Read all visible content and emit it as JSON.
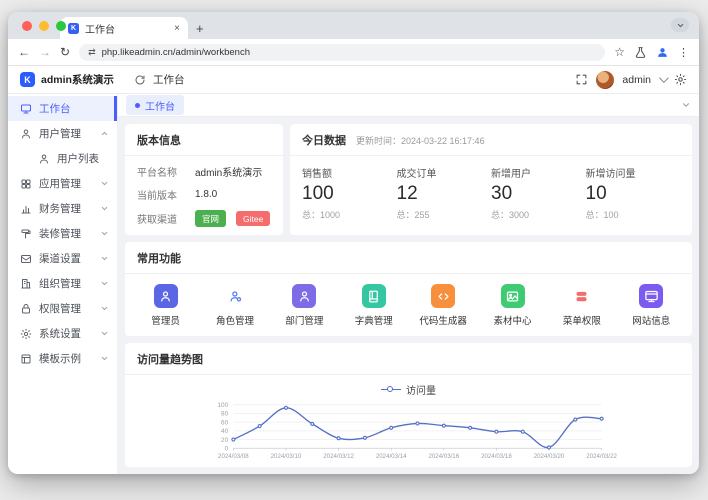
{
  "colors": {
    "accent": "#4a5dff",
    "chart_line": "#5470c6",
    "btn_green": "#4cb050",
    "btn_red": "#f56c6c"
  },
  "browser": {
    "tab_title": "工作台",
    "url": "php.likeadmin.cn/admin/workbench"
  },
  "app_header": {
    "app_name": "admin系统演示",
    "breadcrumb": "工作台",
    "user_name": "admin"
  },
  "tab_bar": {
    "active_tab": "工作台"
  },
  "sidebar": {
    "items": [
      {
        "label": "工作台",
        "icon": "#i-monitor"
      },
      {
        "label": "用户管理",
        "icon": "#i-user"
      },
      {
        "label": "用户列表",
        "icon": "#i-user"
      },
      {
        "label": "应用管理",
        "icon": "#i-app"
      },
      {
        "label": "财务管理",
        "icon": "#i-finance"
      },
      {
        "label": "装修管理",
        "icon": "#i-brush"
      },
      {
        "label": "渠道设置",
        "icon": "#i-channel"
      },
      {
        "label": "组织管理",
        "icon": "#i-org"
      },
      {
        "label": "权限管理",
        "icon": "#i-lock"
      },
      {
        "label": "系统设置",
        "icon": "#i-gear"
      },
      {
        "label": "模板示例",
        "icon": "#i-template"
      }
    ]
  },
  "version_panel": {
    "title": "版本信息",
    "rows": [
      {
        "label": "平台名称",
        "value": "admin系统演示"
      },
      {
        "label": "当前版本",
        "value": "1.8.0"
      }
    ],
    "channel_label": "获取渠道",
    "buttons": [
      {
        "label": "官网",
        "color": "#4cb050"
      },
      {
        "label": "Gitee",
        "color": "#f56c6c"
      }
    ]
  },
  "today_panel": {
    "title": "今日数据",
    "updated": "更新时间：2024-03-22 16:17:46",
    "stats": [
      {
        "label": "销售额",
        "value": "100",
        "total": "总：1000"
      },
      {
        "label": "成交订单",
        "value": "12",
        "total": "总：255"
      },
      {
        "label": "新增用户",
        "value": "30",
        "total": "总：3000"
      },
      {
        "label": "新增访问量",
        "value": "10",
        "total": "总：100"
      }
    ]
  },
  "common_panel": {
    "title": "常用功能",
    "items": [
      {
        "label": "管理员",
        "icon": "#i-fn-person",
        "bg": "#5a66e3",
        "fg": "#ffffff"
      },
      {
        "label": "角色管理",
        "icon": "#i-fn-role",
        "bg": "transparent",
        "fg": "#4f7af5"
      },
      {
        "label": "部门管理",
        "icon": "#i-fn-person",
        "bg": "#7d6ce6",
        "fg": "#ffffff"
      },
      {
        "label": "字典管理",
        "icon": "#i-fn-book",
        "bg": "#35c6a2",
        "fg": "#ffffff"
      },
      {
        "label": "代码生成器",
        "icon": "#i-fn-code",
        "bg": "#f78f3d",
        "fg": "#ffffff"
      },
      {
        "label": "素材中心",
        "icon": "#i-fn-image",
        "bg": "#3ecb72",
        "fg": "#ffffff"
      },
      {
        "label": "菜单权限",
        "icon": "#i-fn-menu",
        "bg": "transparent",
        "fg": "#f56c6c"
      },
      {
        "label": "网站信息",
        "icon": "#i-fn-site",
        "bg": "#7b5bf0",
        "fg": "#ffffff"
      }
    ]
  },
  "chart_panel": {
    "title": "访问量趋势图"
  },
  "chart_data": {
    "type": "line",
    "title": "访问量趋势图",
    "legend": [
      "访问量"
    ],
    "legend_position": "top",
    "x": [
      "2024/03/08",
      "2024/03/09",
      "2024/03/10",
      "2024/03/11",
      "2024/03/12",
      "2024/03/13",
      "2024/03/14",
      "2024/03/15",
      "2024/03/16",
      "2024/03/17",
      "2024/03/18",
      "2024/03/19",
      "2024/03/20",
      "2024/03/21",
      "2024/03/22"
    ],
    "x_tick_labels": [
      "2024/03/08",
      "2024/03/10",
      "2024/03/12",
      "2024/03/14",
      "2024/03/16",
      "2024/03/18",
      "2024/03/20",
      "2024/03/22"
    ],
    "series": [
      {
        "name": "访问量",
        "values": [
          20,
          51,
          93,
          56,
          23,
          24,
          47,
          57,
          52,
          47,
          38,
          38,
          2,
          66,
          68
        ],
        "color": "#5470c6"
      }
    ],
    "ylim": [
      0,
      100
    ],
    "y_ticks": [
      0,
      20,
      40,
      60,
      80,
      100
    ],
    "grid": true
  }
}
